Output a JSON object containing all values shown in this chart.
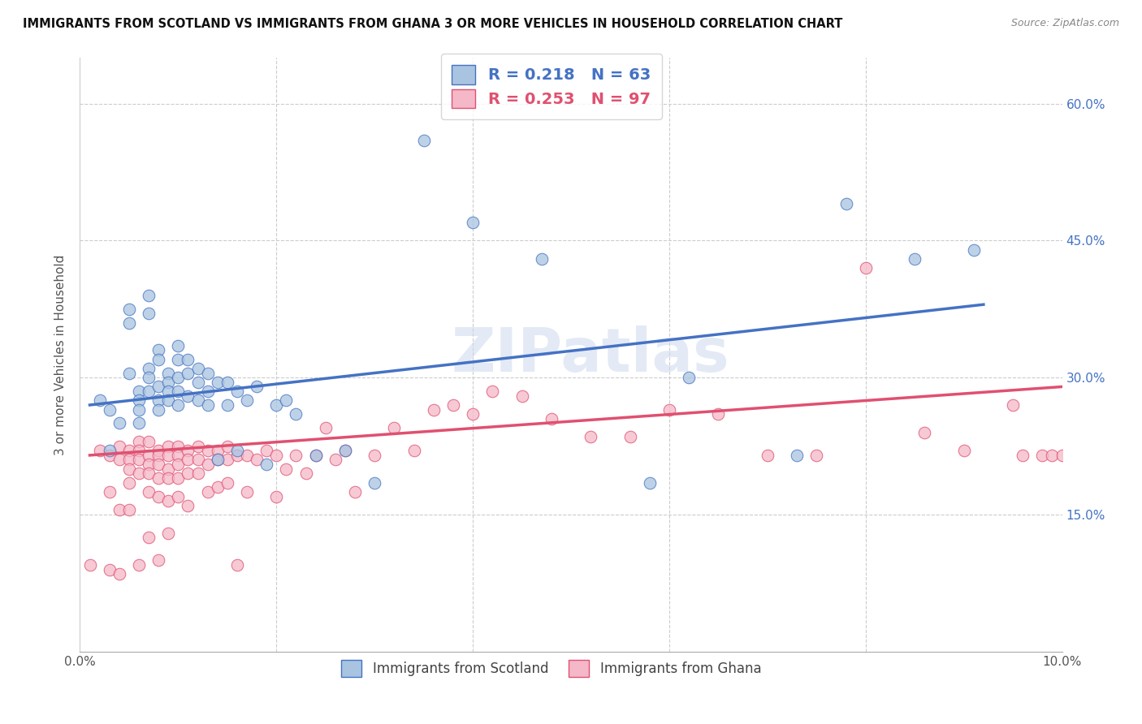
{
  "title": "IMMIGRANTS FROM SCOTLAND VS IMMIGRANTS FROM GHANA 3 OR MORE VEHICLES IN HOUSEHOLD CORRELATION CHART",
  "source": "Source: ZipAtlas.com",
  "ylabel": "3 or more Vehicles in Household",
  "xlim": [
    0.0,
    0.1
  ],
  "ylim": [
    0.0,
    0.65
  ],
  "scotland_color": "#a8c4e0",
  "ghana_color": "#f4b8c8",
  "scotland_line_color": "#4472c4",
  "ghana_line_color": "#e05070",
  "scotland_R": 0.218,
  "scotland_N": 63,
  "ghana_R": 0.253,
  "ghana_N": 97,
  "legend_label_scotland": "Immigrants from Scotland",
  "legend_label_ghana": "Immigrants from Ghana",
  "watermark": "ZIPatlas",
  "scotland_x": [
    0.002,
    0.003,
    0.003,
    0.004,
    0.005,
    0.005,
    0.005,
    0.006,
    0.006,
    0.006,
    0.006,
    0.007,
    0.007,
    0.007,
    0.007,
    0.007,
    0.008,
    0.008,
    0.008,
    0.008,
    0.008,
    0.009,
    0.009,
    0.009,
    0.009,
    0.01,
    0.01,
    0.01,
    0.01,
    0.01,
    0.011,
    0.011,
    0.011,
    0.012,
    0.012,
    0.012,
    0.013,
    0.013,
    0.013,
    0.014,
    0.014,
    0.015,
    0.015,
    0.016,
    0.016,
    0.017,
    0.018,
    0.019,
    0.02,
    0.021,
    0.022,
    0.024,
    0.027,
    0.03,
    0.035,
    0.04,
    0.047,
    0.058,
    0.062,
    0.073,
    0.078,
    0.085,
    0.091
  ],
  "scotland_y": [
    0.275,
    0.265,
    0.22,
    0.25,
    0.375,
    0.36,
    0.305,
    0.285,
    0.275,
    0.265,
    0.25,
    0.39,
    0.37,
    0.31,
    0.3,
    0.285,
    0.33,
    0.32,
    0.29,
    0.275,
    0.265,
    0.305,
    0.295,
    0.285,
    0.275,
    0.335,
    0.32,
    0.3,
    0.285,
    0.27,
    0.32,
    0.305,
    0.28,
    0.31,
    0.295,
    0.275,
    0.305,
    0.285,
    0.27,
    0.295,
    0.21,
    0.295,
    0.27,
    0.285,
    0.22,
    0.275,
    0.29,
    0.205,
    0.27,
    0.275,
    0.26,
    0.215,
    0.22,
    0.185,
    0.56,
    0.47,
    0.43,
    0.185,
    0.3,
    0.215,
    0.49,
    0.43,
    0.44
  ],
  "ghana_x": [
    0.001,
    0.002,
    0.003,
    0.003,
    0.003,
    0.004,
    0.004,
    0.004,
    0.004,
    0.005,
    0.005,
    0.005,
    0.005,
    0.005,
    0.006,
    0.006,
    0.006,
    0.006,
    0.006,
    0.007,
    0.007,
    0.007,
    0.007,
    0.007,
    0.007,
    0.008,
    0.008,
    0.008,
    0.008,
    0.008,
    0.008,
    0.009,
    0.009,
    0.009,
    0.009,
    0.009,
    0.009,
    0.01,
    0.01,
    0.01,
    0.01,
    0.01,
    0.011,
    0.011,
    0.011,
    0.011,
    0.012,
    0.012,
    0.012,
    0.013,
    0.013,
    0.013,
    0.014,
    0.014,
    0.014,
    0.015,
    0.015,
    0.015,
    0.016,
    0.016,
    0.017,
    0.017,
    0.018,
    0.019,
    0.02,
    0.02,
    0.021,
    0.022,
    0.023,
    0.024,
    0.025,
    0.026,
    0.027,
    0.028,
    0.03,
    0.032,
    0.034,
    0.036,
    0.038,
    0.04,
    0.042,
    0.045,
    0.048,
    0.052,
    0.056,
    0.06,
    0.065,
    0.07,
    0.075,
    0.08,
    0.086,
    0.09,
    0.095,
    0.096,
    0.098,
    0.099,
    0.1
  ],
  "ghana_y": [
    0.095,
    0.22,
    0.215,
    0.175,
    0.09,
    0.225,
    0.21,
    0.155,
    0.085,
    0.22,
    0.21,
    0.2,
    0.185,
    0.155,
    0.23,
    0.22,
    0.21,
    0.195,
    0.095,
    0.23,
    0.215,
    0.205,
    0.195,
    0.175,
    0.125,
    0.22,
    0.215,
    0.205,
    0.19,
    0.17,
    0.1,
    0.225,
    0.215,
    0.2,
    0.19,
    0.165,
    0.13,
    0.225,
    0.215,
    0.205,
    0.19,
    0.17,
    0.22,
    0.21,
    0.195,
    0.16,
    0.225,
    0.21,
    0.195,
    0.22,
    0.205,
    0.175,
    0.22,
    0.21,
    0.18,
    0.225,
    0.21,
    0.185,
    0.215,
    0.095,
    0.215,
    0.175,
    0.21,
    0.22,
    0.215,
    0.17,
    0.2,
    0.215,
    0.195,
    0.215,
    0.245,
    0.21,
    0.22,
    0.175,
    0.215,
    0.245,
    0.22,
    0.265,
    0.27,
    0.26,
    0.285,
    0.28,
    0.255,
    0.235,
    0.235,
    0.265,
    0.26,
    0.215,
    0.215,
    0.42,
    0.24,
    0.22,
    0.27,
    0.215,
    0.215,
    0.215,
    0.215
  ],
  "scotland_line_x": [
    0.001,
    0.092
  ],
  "scotland_line_y": [
    0.27,
    0.38
  ],
  "ghana_line_x": [
    0.001,
    0.1
  ],
  "ghana_line_y": [
    0.215,
    0.29
  ]
}
